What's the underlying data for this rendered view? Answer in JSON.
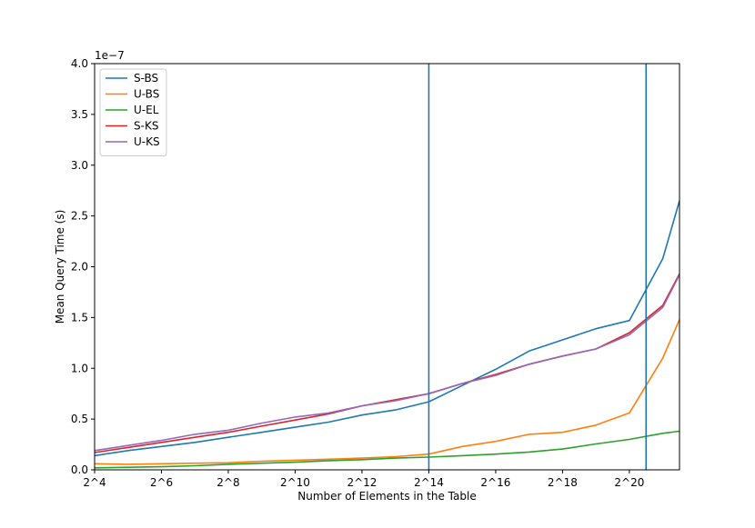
{
  "chart_data": {
    "type": "line",
    "title": "",
    "xlabel": "Number of Elements in the Table",
    "ylabel": "Mean Query Time (s)",
    "y_offset_label": "1e−7",
    "xlim": [
      4,
      21.5
    ],
    "ylim": [
      0,
      4.0
    ],
    "x_ticks": [
      4,
      6,
      8,
      10,
      12,
      14,
      16,
      18,
      20
    ],
    "x_tick_labels": [
      "2^4",
      "2^6",
      "2^8",
      "2^10",
      "2^12",
      "2^14",
      "2^16",
      "2^18",
      "2^20"
    ],
    "y_ticks": [
      0.0,
      0.5,
      1.0,
      1.5,
      2.0,
      2.5,
      3.0,
      3.5,
      4.0
    ],
    "y_tick_labels": [
      "0.0",
      "0.5",
      "1.0",
      "1.5",
      "2.0",
      "2.5",
      "3.0",
      "3.5",
      "4.0"
    ],
    "grid": false,
    "legend_position": "top-left",
    "vertical_lines": [
      {
        "x": 14,
        "color": "#1f77b4"
      },
      {
        "x": 20.5,
        "color": "#1f77b4"
      }
    ],
    "x": [
      4,
      5,
      6,
      7,
      8,
      9,
      10,
      11,
      12,
      13,
      14,
      15,
      16,
      17,
      18,
      19,
      20,
      21,
      21.5
    ],
    "series": [
      {
        "name": "S-BS",
        "color": "#1f77b4",
        "values": [
          0.14,
          0.19,
          0.23,
          0.27,
          0.32,
          0.37,
          0.42,
          0.47,
          0.54,
          0.59,
          0.67,
          0.83,
          0.99,
          1.17,
          1.28,
          1.39,
          1.47,
          2.08,
          2.65
        ]
      },
      {
        "name": "U-BS",
        "color": "#ff7f0e",
        "values": [
          0.06,
          0.055,
          0.06,
          0.065,
          0.07,
          0.085,
          0.095,
          0.105,
          0.115,
          0.13,
          0.155,
          0.23,
          0.28,
          0.35,
          0.37,
          0.44,
          0.56,
          1.1,
          1.48
        ]
      },
      {
        "name": "U-EL",
        "color": "#2ca02c",
        "values": [
          0.02,
          0.025,
          0.03,
          0.04,
          0.055,
          0.065,
          0.075,
          0.09,
          0.1,
          0.115,
          0.125,
          0.14,
          0.155,
          0.175,
          0.205,
          0.255,
          0.3,
          0.36,
          0.38
        ]
      },
      {
        "name": "S-KS",
        "color": "#d62728",
        "values": [
          0.17,
          0.22,
          0.27,
          0.32,
          0.37,
          0.43,
          0.49,
          0.55,
          0.63,
          0.69,
          0.75,
          0.85,
          0.94,
          1.04,
          1.12,
          1.19,
          1.35,
          1.62,
          1.93
        ]
      },
      {
        "name": "U-KS",
        "color": "#9467bd",
        "values": [
          0.19,
          0.24,
          0.29,
          0.35,
          0.39,
          0.46,
          0.52,
          0.56,
          0.63,
          0.68,
          0.75,
          0.85,
          0.93,
          1.04,
          1.12,
          1.19,
          1.33,
          1.6,
          1.92
        ]
      }
    ]
  }
}
